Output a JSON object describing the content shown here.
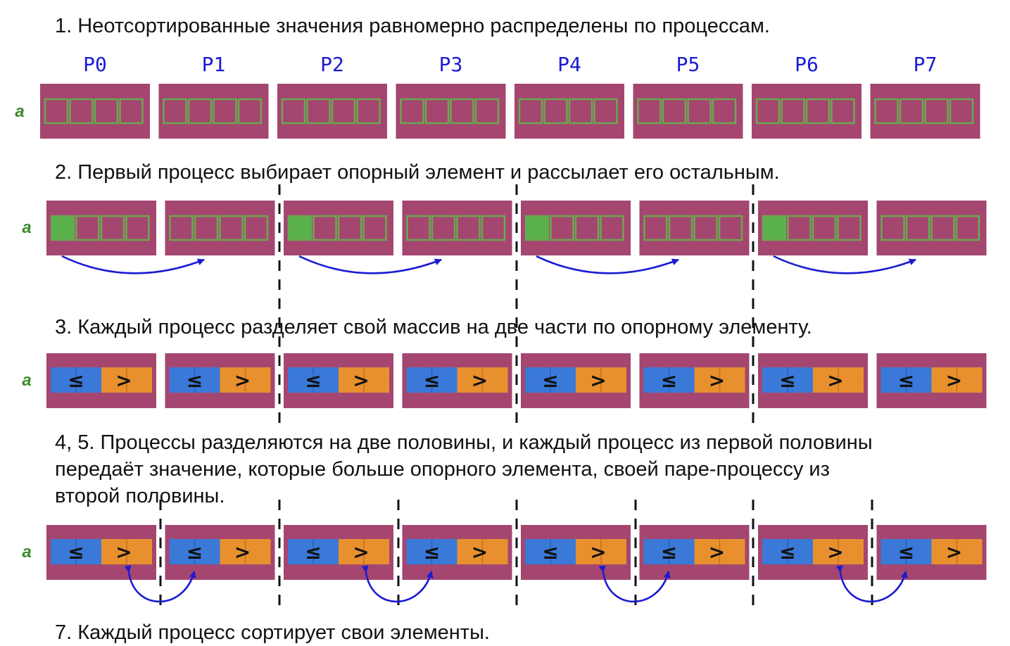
{
  "steps": {
    "s1": "1. Неотсортированные значения равномерно распределены по процессам.",
    "s2": "2. Первый процесс выбирает опорный элемент и рассылает его остальным.",
    "s3": "3. Каждый процесс разделяет свой массив на две части по опорному элементу.",
    "s4_line1": "4, 5. Процессы разделяются на две половины, и каждый процесс из первой половины",
    "s4_line2": "передаёт значение, которые больше опорного элемента, своей паре-процессу из",
    "s4_line3": "второй половины.",
    "s7": "7. Каждый процесс сортирует свои элементы."
  },
  "processes": [
    "P0",
    "P1",
    "P2",
    "P3",
    "P4",
    "P5",
    "P6",
    "P7"
  ],
  "array_label": "a",
  "partition": {
    "le_symbol": "≤",
    "gt_symbol": ">"
  },
  "colors": {
    "block": "#a44670",
    "cell_border": "#6aa84f",
    "pivot": "#5ab04a",
    "le_part": "#3a79d8",
    "gt_part": "#e8902e",
    "arrow": "#1a1ad4",
    "label": "#1a1ad4",
    "divider": "#111111"
  }
}
